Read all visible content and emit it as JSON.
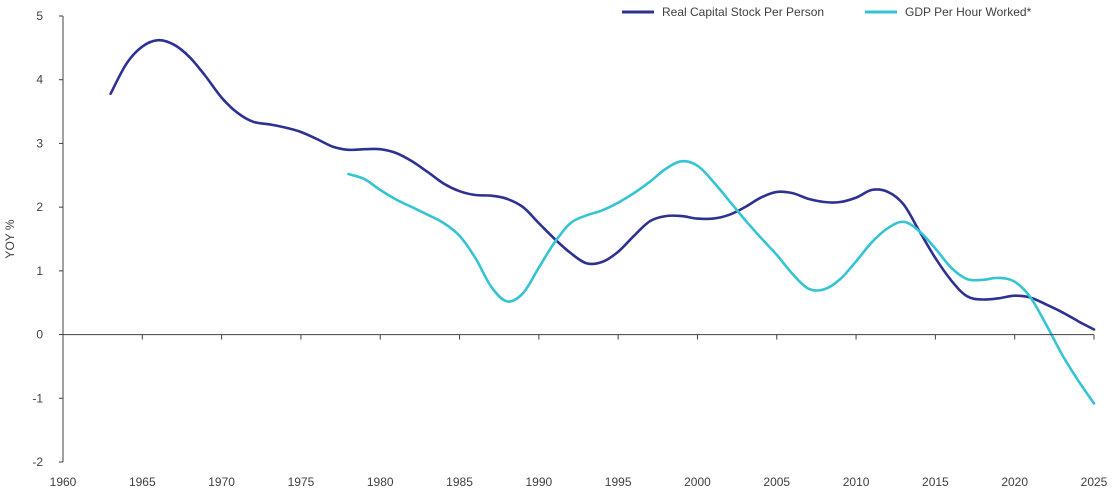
{
  "chart_data": {
    "type": "line",
    "title": "",
    "xlabel": "",
    "ylabel": "YOY %",
    "xlim": [
      1960,
      2025
    ],
    "ylim": [
      -2,
      5
    ],
    "x_ticks": [
      1960,
      1965,
      1970,
      1975,
      1980,
      1985,
      1990,
      1995,
      2000,
      2005,
      2010,
      2015,
      2020,
      2025
    ],
    "y_ticks": [
      -2,
      -1,
      0,
      1,
      2,
      3,
      4,
      5
    ],
    "legend_position": "top-right",
    "grid": false,
    "series": [
      {
        "name": "Real Capital Stock Per Person",
        "color": "#2e3192",
        "points": [
          [
            1963,
            3.78
          ],
          [
            1964,
            4.25
          ],
          [
            1965,
            4.52
          ],
          [
            1966,
            4.62
          ],
          [
            1967,
            4.55
          ],
          [
            1968,
            4.35
          ],
          [
            1969,
            4.05
          ],
          [
            1970,
            3.72
          ],
          [
            1971,
            3.48
          ],
          [
            1972,
            3.34
          ],
          [
            1973,
            3.3
          ],
          [
            1974,
            3.25
          ],
          [
            1975,
            3.18
          ],
          [
            1976,
            3.07
          ],
          [
            1977,
            2.95
          ],
          [
            1978,
            2.9
          ],
          [
            1979,
            2.91
          ],
          [
            1980,
            2.91
          ],
          [
            1981,
            2.85
          ],
          [
            1982,
            2.72
          ],
          [
            1983,
            2.55
          ],
          [
            1984,
            2.37
          ],
          [
            1985,
            2.25
          ],
          [
            1986,
            2.19
          ],
          [
            1987,
            2.18
          ],
          [
            1988,
            2.13
          ],
          [
            1989,
            2.0
          ],
          [
            1990,
            1.75
          ],
          [
            1991,
            1.5
          ],
          [
            1992,
            1.28
          ],
          [
            1993,
            1.12
          ],
          [
            1994,
            1.14
          ],
          [
            1995,
            1.3
          ],
          [
            1996,
            1.55
          ],
          [
            1997,
            1.78
          ],
          [
            1998,
            1.86
          ],
          [
            1999,
            1.86
          ],
          [
            2000,
            1.82
          ],
          [
            2001,
            1.82
          ],
          [
            2002,
            1.88
          ],
          [
            2003,
            2.0
          ],
          [
            2004,
            2.15
          ],
          [
            2005,
            2.24
          ],
          [
            2006,
            2.22
          ],
          [
            2007,
            2.13
          ],
          [
            2008,
            2.08
          ],
          [
            2009,
            2.08
          ],
          [
            2010,
            2.15
          ],
          [
            2011,
            2.27
          ],
          [
            2012,
            2.24
          ],
          [
            2013,
            2.04
          ],
          [
            2014,
            1.62
          ],
          [
            2015,
            1.2
          ],
          [
            2016,
            0.85
          ],
          [
            2017,
            0.6
          ],
          [
            2018,
            0.55
          ],
          [
            2019,
            0.57
          ],
          [
            2020,
            0.61
          ],
          [
            2021,
            0.58
          ],
          [
            2022,
            0.47
          ],
          [
            2023,
            0.35
          ],
          [
            2024,
            0.21
          ],
          [
            2025,
            0.08
          ]
        ]
      },
      {
        "name": "GDP Per Hour Worked*",
        "color": "#35c4d4",
        "points": [
          [
            1978,
            2.52
          ],
          [
            1979,
            2.44
          ],
          [
            1980,
            2.27
          ],
          [
            1981,
            2.12
          ],
          [
            1982,
            2.0
          ],
          [
            1983,
            1.88
          ],
          [
            1984,
            1.75
          ],
          [
            1985,
            1.55
          ],
          [
            1986,
            1.2
          ],
          [
            1987,
            0.75
          ],
          [
            1988,
            0.52
          ],
          [
            1989,
            0.65
          ],
          [
            1990,
            1.05
          ],
          [
            1991,
            1.45
          ],
          [
            1992,
            1.75
          ],
          [
            1993,
            1.87
          ],
          [
            1994,
            1.95
          ],
          [
            1995,
            2.07
          ],
          [
            1996,
            2.22
          ],
          [
            1997,
            2.4
          ],
          [
            1998,
            2.6
          ],
          [
            1999,
            2.72
          ],
          [
            2000,
            2.65
          ],
          [
            2001,
            2.4
          ],
          [
            2002,
            2.1
          ],
          [
            2003,
            1.8
          ],
          [
            2004,
            1.52
          ],
          [
            2005,
            1.25
          ],
          [
            2006,
            0.95
          ],
          [
            2007,
            0.72
          ],
          [
            2008,
            0.71
          ],
          [
            2009,
            0.87
          ],
          [
            2010,
            1.15
          ],
          [
            2011,
            1.45
          ],
          [
            2012,
            1.67
          ],
          [
            2013,
            1.77
          ],
          [
            2014,
            1.62
          ],
          [
            2015,
            1.35
          ],
          [
            2016,
            1.05
          ],
          [
            2017,
            0.87
          ],
          [
            2018,
            0.86
          ],
          [
            2019,
            0.89
          ],
          [
            2020,
            0.83
          ],
          [
            2021,
            0.58
          ],
          [
            2022,
            0.15
          ],
          [
            2023,
            -0.32
          ],
          [
            2024,
            -0.72
          ],
          [
            2025,
            -1.08
          ]
        ]
      }
    ]
  }
}
